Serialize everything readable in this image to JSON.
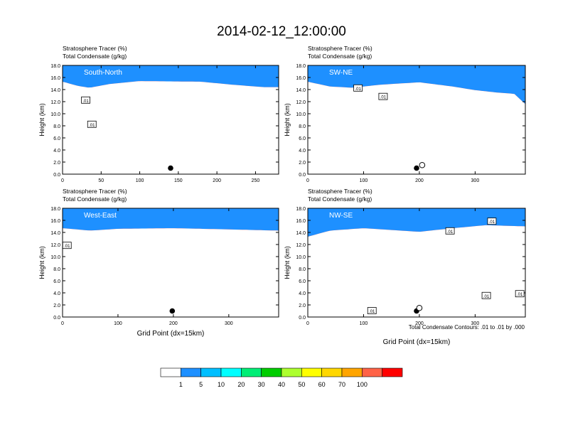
{
  "title": "2014-02-12_12:00:00",
  "colors": {
    "levels": [
      "#ffffff",
      "#1e90ff",
      "#00bfff",
      "#00ffff",
      "#00ee76",
      "#00cd00",
      "#adff2f",
      "#ffff00",
      "#ffd700",
      "#ffa500",
      "#ff6347",
      "#ff0000"
    ]
  },
  "colorbar": {
    "labels": [
      "1",
      "5",
      "10",
      "20",
      "30",
      "40",
      "50",
      "60",
      "70",
      "100"
    ]
  },
  "contour_note": "Total Condensate Contours: .01 to .01 by .000",
  "chart_data": [
    {
      "type": "heatmap",
      "subtitle1": "Stratosphere Tracer   (%)",
      "subtitle2": "Total Condensate   (g/kg)",
      "panel_label": "South-North",
      "ylabel": "Height (km)",
      "xlabel": "",
      "xlim": [
        0,
        280
      ],
      "ylim": [
        0,
        18
      ],
      "xticks": [
        0,
        50,
        100,
        150,
        200,
        250
      ],
      "yticks": [
        0.0,
        2.0,
        4.0,
        6.0,
        8.0,
        10.0,
        12.0,
        14.0,
        16.0,
        18.0
      ],
      "ytick_labels": [
        "0.0",
        "2.0",
        "4.0",
        "6.0",
        "8.0",
        "10.0",
        "12.0",
        "14.0",
        "16.0",
        "18.0"
      ],
      "tropopause_km": [
        [
          0,
          16.2
        ],
        [
          20,
          15.5
        ],
        [
          35,
          15.2
        ],
        [
          60,
          15.8
        ],
        [
          100,
          16.3
        ],
        [
          180,
          16.2
        ],
        [
          220,
          15.7
        ],
        [
          260,
          15.3
        ],
        [
          280,
          15.3
        ]
      ],
      "contour_labels": [
        {
          "x": 30,
          "y": 12.2,
          "text": ".01"
        },
        {
          "x": 38,
          "y": 8.2,
          "text": ".01"
        }
      ],
      "marker_filled": {
        "x": 140,
        "y": 1.0
      }
    },
    {
      "type": "heatmap",
      "subtitle1": "Stratosphere Tracer   (%)",
      "subtitle2": "Total Condensate   (g/kg)",
      "panel_label": "SW-NE",
      "ylabel": "Height (km)",
      "xlabel": "",
      "xlim": [
        0,
        390
      ],
      "ylim": [
        0,
        18
      ],
      "xticks": [
        0,
        100,
        200,
        300
      ],
      "yticks": [
        0.0,
        2.0,
        4.0,
        6.0,
        8.0,
        10.0,
        12.0,
        14.0,
        16.0,
        18.0
      ],
      "ytick_labels": [
        "0.0",
        "2.0",
        "4.0",
        "6.0",
        "8.0",
        "10.0",
        "12.0",
        "14.0",
        "16.0",
        "18.0"
      ],
      "tropopause_km": [
        [
          0,
          16.2
        ],
        [
          40,
          15.4
        ],
        [
          80,
          15.2
        ],
        [
          130,
          15.7
        ],
        [
          200,
          16.1
        ],
        [
          260,
          15.4
        ],
        [
          300,
          14.8
        ],
        [
          340,
          14.4
        ],
        [
          370,
          14.2
        ],
        [
          390,
          12.5
        ]
      ],
      "contour_labels": [
        {
          "x": 90,
          "y": 14.2,
          "text": ".01"
        },
        {
          "x": 135,
          "y": 12.8,
          "text": ".01"
        }
      ],
      "marker_filled": {
        "x": 195,
        "y": 1.0
      },
      "marker_open": {
        "x": 205,
        "y": 1.5
      }
    },
    {
      "type": "heatmap",
      "subtitle1": "Stratosphere Tracer   (%)",
      "subtitle2": "Total Condensate   (g/kg)",
      "panel_label": "West-East",
      "ylabel": "Height (km)",
      "xlabel": "Grid Point (dx=15km)",
      "xlim": [
        0,
        390
      ],
      "ylim": [
        0,
        18
      ],
      "xticks": [
        0,
        100,
        200,
        300
      ],
      "yticks": [
        0.0,
        2.0,
        4.0,
        6.0,
        8.0,
        10.0,
        12.0,
        14.0,
        16.0,
        18.0
      ],
      "ytick_labels": [
        "0.0",
        "2.0",
        "4.0",
        "6.0",
        "8.0",
        "10.0",
        "12.0",
        "14.0",
        "16.0",
        "18.0"
      ],
      "tropopause_km": [
        [
          0,
          15.6
        ],
        [
          50,
          15.2
        ],
        [
          100,
          15.5
        ],
        [
          200,
          15.6
        ],
        [
          300,
          15.4
        ],
        [
          390,
          15.2
        ]
      ],
      "contour_labels": [
        {
          "x": 8,
          "y": 11.8,
          "text": ".01"
        }
      ],
      "marker_filled": {
        "x": 198,
        "y": 1.0
      }
    },
    {
      "type": "heatmap",
      "subtitle1": "Stratosphere Tracer   (%)",
      "subtitle2": "Total Condensate   (g/kg)",
      "panel_label": "NW-SE",
      "ylabel": "Height (km)",
      "xlabel": "Grid Point (dx=15km)",
      "xlim": [
        0,
        390
      ],
      "ylim": [
        0,
        18
      ],
      "xticks": [
        0,
        100,
        200,
        300
      ],
      "yticks": [
        0.0,
        2.0,
        4.0,
        6.0,
        8.0,
        10.0,
        12.0,
        14.0,
        16.0,
        18.0
      ],
      "ytick_labels": [
        "0.0",
        "2.0",
        "4.0",
        "6.0",
        "8.0",
        "10.0",
        "12.0",
        "14.0",
        "16.0",
        "18.0"
      ],
      "tropopause_km": [
        [
          0,
          14.2
        ],
        [
          40,
          15.2
        ],
        [
          100,
          15.6
        ],
        [
          200,
          15.0
        ],
        [
          260,
          15.6
        ],
        [
          320,
          16.1
        ],
        [
          390,
          15.9
        ]
      ],
      "contour_labels": [
        {
          "x": 255,
          "y": 14.2,
          "text": ".01"
        },
        {
          "x": 330,
          "y": 15.8,
          "text": ".01"
        },
        {
          "x": 320,
          "y": 3.5,
          "text": ".01"
        },
        {
          "x": 380,
          "y": 3.8,
          "text": ".01"
        },
        {
          "x": 115,
          "y": 1.0,
          "text": ".01"
        }
      ],
      "marker_filled": {
        "x": 195,
        "y": 1.0
      },
      "marker_open": {
        "x": 200,
        "y": 1.5
      }
    }
  ]
}
